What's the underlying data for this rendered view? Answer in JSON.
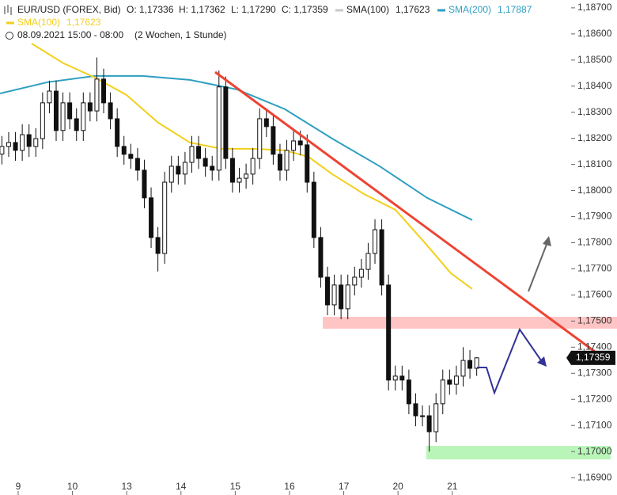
{
  "chart_data": {
    "type": "candlestick",
    "title": "EUR/USD (FOREX, Bid)",
    "ohlc_labels": [
      "O: 1,17336",
      "H: 1,17362",
      "L: 1,17290",
      "C: 1,17359"
    ],
    "inactive_legend": {
      "name": "SMA(100)",
      "value": "1,17623",
      "color": "#c8c8c8"
    },
    "period": "08.09.2021 15:00 - 08:00",
    "interval": "(2 Wochen, 1 Stunde)",
    "last_label": "1,17359",
    "xlim": [
      -0.335,
      10.19
    ],
    "ylim": [
      1.16873,
      1.1873
    ],
    "xticks": [
      {
        "value": 0,
        "label": "9"
      },
      {
        "value": 1,
        "label": "10"
      },
      {
        "value": 2,
        "label": "13"
      },
      {
        "value": 3,
        "label": "14"
      },
      {
        "value": 4,
        "label": "15"
      },
      {
        "value": 5,
        "label": "16"
      },
      {
        "value": 6,
        "label": "17"
      },
      {
        "value": 7,
        "label": "20"
      },
      {
        "value": 8,
        "label": "21"
      }
    ],
    "yticks": [
      {
        "value": 1.187,
        "label": "1,18700"
      },
      {
        "value": 1.186,
        "label": "1,18600"
      },
      {
        "value": 1.185,
        "label": "1,18500"
      },
      {
        "value": 1.184,
        "label": "1,18400"
      },
      {
        "value": 1.183,
        "label": "1,18300"
      },
      {
        "value": 1.182,
        "label": "1,18200"
      },
      {
        "value": 1.181,
        "label": "1,18100"
      },
      {
        "value": 1.18,
        "label": "1,18000"
      },
      {
        "value": 1.179,
        "label": "1,17900"
      },
      {
        "value": 1.178,
        "label": "1,17800"
      },
      {
        "value": 1.177,
        "label": "1,17700"
      },
      {
        "value": 1.176,
        "label": "1,17600"
      },
      {
        "value": 1.175,
        "label": "1,17500"
      },
      {
        "value": 1.174,
        "label": "1,17400"
      },
      {
        "value": 1.173,
        "label": "1,17300"
      },
      {
        "value": 1.172,
        "label": "1,17200"
      },
      {
        "value": 1.171,
        "label": "1,17100"
      },
      {
        "value": 1.17,
        "label": "1,17000"
      },
      {
        "value": 1.169,
        "label": "1,16900"
      }
    ],
    "candles": {
      "x": [
        -0.3,
        -0.175,
        -0.05,
        0.075,
        0.2,
        0.325,
        0.45,
        0.575,
        0.7,
        0.825,
        0.95,
        1.075,
        1.2,
        1.325,
        1.45,
        1.575,
        1.7,
        1.825,
        1.95,
        2.075,
        2.2,
        2.325,
        2.45,
        2.575,
        2.7,
        2.825,
        2.95,
        3.075,
        3.2,
        3.325,
        3.45,
        3.575,
        3.7,
        3.825,
        3.95,
        4.075,
        4.2,
        4.325,
        4.45,
        4.575,
        4.7,
        4.825,
        4.95,
        5.075,
        5.2,
        5.325,
        5.45,
        5.575,
        5.7,
        5.825,
        5.95,
        6.075,
        6.2,
        6.325,
        6.45,
        6.575,
        6.7,
        6.825,
        6.95,
        7.075,
        7.2,
        7.325,
        7.45,
        7.575,
        7.7,
        7.825,
        7.95,
        8.075,
        8.2,
        8.325,
        8.45
      ],
      "open": [
        1.1814,
        1.18169,
        1.18184,
        1.18154,
        1.18214,
        1.18169,
        1.18199,
        1.18336,
        1.18381,
        1.1823,
        1.18336,
        1.18275,
        1.1823,
        1.18336,
        1.18305,
        1.18427,
        1.18336,
        1.18275,
        1.18169,
        1.18139,
        1.18123,
        1.18078,
        1.17972,
        1.1782,
        1.17759,
        1.18032,
        1.18093,
        1.18063,
        1.18108,
        1.18169,
        1.18123,
        1.18093,
        1.18078,
        1.18397,
        1.18123,
        1.18032,
        1.18047,
        1.18063,
        1.18123,
        1.18275,
        1.18245,
        1.18139,
        1.18078,
        1.18154,
        1.1819,
        1.18175,
        1.18032,
        1.1782,
        1.17668,
        1.17562,
        1.17638,
        1.17547,
        1.17638,
        1.17668,
        1.17698,
        1.17759,
        1.1785,
        1.17638,
        1.17274,
        1.17289,
        1.17274,
        1.17183,
        1.17137,
        1.17137,
        1.17076,
        1.17183,
        1.17274,
        1.17258,
        1.17289,
        1.17349,
        1.17319
      ],
      "high": [
        1.18209,
        1.18224,
        1.18224,
        1.18254,
        1.18254,
        1.18239,
        1.18376,
        1.18421,
        1.18421,
        1.18376,
        1.18376,
        1.18315,
        1.18376,
        1.18376,
        1.1851,
        1.18467,
        1.18376,
        1.18315,
        1.18209,
        1.18179,
        1.18163,
        1.18118,
        1.18012,
        1.1786,
        1.18072,
        1.18133,
        1.18133,
        1.18148,
        1.18209,
        1.18209,
        1.18163,
        1.18133,
        1.1846,
        1.18437,
        1.18163,
        1.18087,
        1.18103,
        1.18163,
        1.18315,
        1.18315,
        1.18285,
        1.18179,
        1.18194,
        1.1823,
        1.1823,
        1.18215,
        1.18072,
        1.1786,
        1.17708,
        1.17678,
        1.17678,
        1.17678,
        1.17708,
        1.17738,
        1.17799,
        1.1789,
        1.1789,
        1.17678,
        1.17329,
        1.17329,
        1.17314,
        1.17223,
        1.17177,
        1.17177,
        1.17223,
        1.17314,
        1.17314,
        1.17329,
        1.174,
        1.17389,
        1.17362
      ],
      "low": [
        1.181,
        1.18129,
        1.18114,
        1.18114,
        1.18129,
        1.18129,
        1.18159,
        1.18296,
        1.1819,
        1.1819,
        1.18235,
        1.1819,
        1.1819,
        1.18265,
        1.18265,
        1.18296,
        1.18235,
        1.18129,
        1.18099,
        1.18083,
        1.18038,
        1.17932,
        1.1778,
        1.1769,
        1.17719,
        1.17992,
        1.18023,
        1.18023,
        1.18068,
        1.18083,
        1.18053,
        1.18038,
        1.18038,
        1.18083,
        1.17992,
        1.17992,
        1.18007,
        1.18023,
        1.18083,
        1.18205,
        1.18099,
        1.18038,
        1.18038,
        1.18114,
        1.18135,
        1.17992,
        1.1778,
        1.17628,
        1.17522,
        1.17522,
        1.17507,
        1.17507,
        1.17598,
        1.17628,
        1.17658,
        1.17719,
        1.17598,
        1.17234,
        1.17234,
        1.17234,
        1.17143,
        1.17097,
        1.17097,
        1.17,
        1.17036,
        1.17143,
        1.17218,
        1.17218,
        1.17249,
        1.17279,
        1.1729
      ],
      "close": [
        1.18169,
        1.18184,
        1.18154,
        1.18214,
        1.18169,
        1.18199,
        1.18336,
        1.18381,
        1.1823,
        1.18336,
        1.18275,
        1.1823,
        1.18336,
        1.18305,
        1.18427,
        1.18336,
        1.18275,
        1.18169,
        1.18139,
        1.18123,
        1.18078,
        1.17972,
        1.1782,
        1.17759,
        1.18032,
        1.18093,
        1.18063,
        1.18108,
        1.18169,
        1.18123,
        1.18093,
        1.18078,
        1.18397,
        1.18123,
        1.18032,
        1.18047,
        1.18063,
        1.18123,
        1.18275,
        1.18245,
        1.18139,
        1.18078,
        1.18154,
        1.1819,
        1.18175,
        1.18032,
        1.1782,
        1.17668,
        1.17562,
        1.17638,
        1.17547,
        1.17638,
        1.17668,
        1.17698,
        1.17759,
        1.1785,
        1.17638,
        1.17274,
        1.17289,
        1.17274,
        1.17183,
        1.17137,
        1.17137,
        1.17076,
        1.17183,
        1.17274,
        1.17258,
        1.17289,
        1.17349,
        1.17319,
        1.17359
      ]
    },
    "series": [
      {
        "name": "SMA(200)",
        "color": "#2e9fc0",
        "legend_value": "1,17887",
        "x": [
          -0.335,
          0.54,
          1.414,
          2.289,
          3.163,
          4.038,
          4.913,
          5.787,
          6.662,
          7.536,
          8.367
        ],
        "values": [
          1.18372,
          1.18415,
          1.18439,
          1.18439,
          1.18424,
          1.18387,
          1.18312,
          1.18199,
          1.18093,
          1.17972,
          1.17887
        ]
      },
      {
        "name": "SMA(100)",
        "color": "#f2cf1c",
        "legend_value": "1,17623",
        "x": [
          0.248,
          0.831,
          1.414,
          1.997,
          2.58,
          3.163,
          3.746,
          4.329,
          4.913,
          5.35,
          5.787,
          6.37,
          6.953,
          7.536,
          7.974,
          8.367
        ],
        "values": [
          1.18563,
          1.18488,
          1.18433,
          1.18366,
          1.1826,
          1.18184,
          1.1816,
          1.1816,
          1.18154,
          1.18129,
          1.18063,
          1.17987,
          1.17926,
          1.1779,
          1.17683,
          1.17623
        ]
      }
    ]
  }
}
